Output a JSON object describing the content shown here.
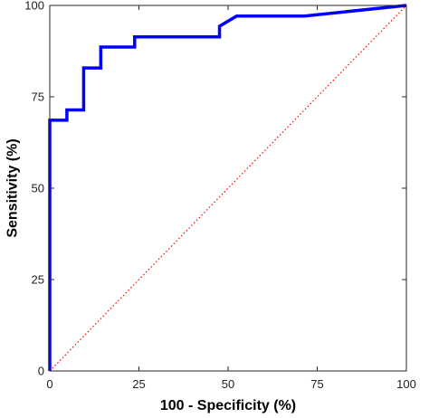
{
  "chart_data": {
    "type": "line",
    "xlabel": "100 - Specificity (%)",
    "ylabel": "Sensitivity (%)",
    "xlim": [
      0,
      100
    ],
    "ylim": [
      0,
      100
    ],
    "xticks": [
      0,
      25,
      50,
      75,
      100
    ],
    "yticks": [
      0,
      25,
      50,
      75,
      100
    ],
    "grid": false,
    "series": [
      {
        "color": "#0000ff",
        "line_style": "solid",
        "x": [
          0,
          0,
          4.8,
          4.8,
          9.5,
          9.5,
          14.3,
          14.3,
          23.8,
          23.8,
          47.6,
          47.6,
          52.4,
          71.4,
          100
        ],
        "y": [
          0,
          68.6,
          68.6,
          71.4,
          71.4,
          82.9,
          82.9,
          88.6,
          88.6,
          91.4,
          91.4,
          94.3,
          97.1,
          97.1,
          100
        ]
      },
      {
        "color": "#ff0000",
        "line_style": "dotted",
        "x": [
          0,
          100
        ],
        "y": [
          0,
          100
        ]
      }
    ]
  }
}
